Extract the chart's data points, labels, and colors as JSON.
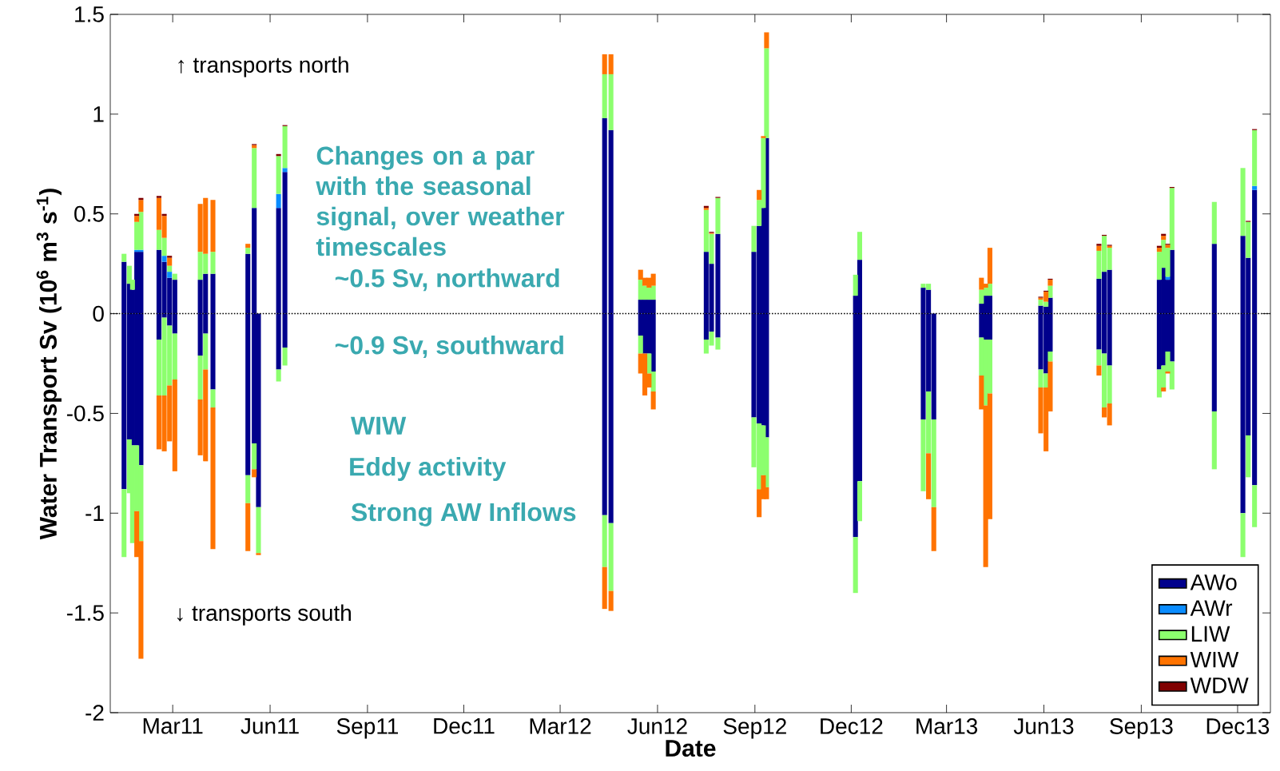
{
  "chart_data": {
    "type": "bar",
    "stacked": true,
    "xlabel": "Date",
    "ylabel": "Water Transport Sv (10$^{6}$ m$^{3}$ s$^{-1}$)",
    "x": [
      "2011-01-14",
      "2011-01-19",
      "2011-01-22",
      "2011-01-26",
      "2011-01-30",
      "2011-02-16",
      "2011-02-21",
      "2011-02-26",
      "2011-03-03",
      "2011-03-27",
      "2011-04-01",
      "2011-04-08",
      "2011-05-11",
      "2011-05-17",
      "2011-05-21",
      "2011-06-09",
      "2011-06-15",
      "2012-04-12",
      "2012-04-18",
      "2012-05-16",
      "2012-05-20",
      "2012-05-24",
      "2012-05-28",
      "2012-07-17",
      "2012-07-22",
      "2012-07-28",
      "2012-08-31",
      "2012-09-05",
      "2012-09-09",
      "2012-09-12",
      "2012-12-05",
      "2012-12-09",
      "2013-02-07",
      "2013-02-12",
      "2013-02-17",
      "2013-04-03",
      "2013-04-07",
      "2013-04-11",
      "2013-05-29",
      "2013-06-03",
      "2013-06-07",
      "2013-07-23",
      "2013-07-28",
      "2013-08-02",
      "2013-09-18",
      "2013-09-22",
      "2013-09-26",
      "2013-09-30",
      "2013-11-09",
      "2013-12-06",
      "2013-12-11",
      "2013-12-17"
    ],
    "series": [
      {
        "name": "AWo",
        "color": "#00008c",
        "values": [
          0.26,
          0.15,
          0.12,
          0.31,
          0.31,
          0.32,
          0.26,
          0.18,
          0.17,
          0.17,
          0.2,
          0.2,
          0.3,
          0.53,
          0,
          0.53,
          0.71,
          0.98,
          0.92,
          0.07,
          0.07,
          0.07,
          0.07,
          0.31,
          0.25,
          0.4,
          0.31,
          0.44,
          0.53,
          0.88,
          0.09,
          0.27,
          0.13,
          0.12,
          0,
          0.05,
          0.09,
          0.09,
          0.04,
          0.035,
          0.08,
          0.175,
          0.21,
          0.22,
          0.17,
          0.23,
          0.17,
          0.32,
          0.35,
          0.39,
          0.28,
          0.62
        ]
      },
      {
        "name": "AWr",
        "color": "#0a8cff",
        "values": [
          0,
          0,
          0,
          0.01,
          0.01,
          0,
          0.03,
          0.03,
          0,
          0,
          0,
          0,
          0,
          0,
          0,
          0.07,
          0.02,
          0,
          0,
          0,
          0,
          0,
          0,
          0,
          0,
          0,
          0,
          0,
          0,
          0,
          0,
          0,
          0,
          0,
          0,
          0,
          0,
          0,
          0,
          0,
          0,
          0,
          0,
          0,
          0,
          0,
          0.015,
          0,
          0,
          0,
          0,
          0.02
        ]
      },
      {
        "name": "LIW",
        "color": "#8cff6e",
        "values": [
          0.04,
          0.09,
          0.05,
          0.14,
          0.19,
          0.1,
          0.09,
          0.03,
          0.03,
          0.14,
          0.1,
          0.11,
          0.03,
          0.3,
          0,
          0.19,
          0.21,
          0.22,
          0.28,
          0.1,
          0.07,
          0.06,
          0.07,
          0.21,
          0.15,
          0.18,
          0.13,
          0.13,
          0.35,
          0.45,
          0.105,
          0.14,
          0.02,
          0.03,
          0,
          0.07,
          0.04,
          0.06,
          0.03,
          0.025,
          0.06,
          0.14,
          0.18,
          0.11,
          0.14,
          0.14,
          0.145,
          0.31,
          0.21,
          0.34,
          0.18,
          0.28
        ]
      },
      {
        "name": "WIW",
        "color": "#ff7300",
        "values": [
          0,
          0,
          0,
          0.03,
          0.06,
          0.16,
          0.11,
          0.04,
          0,
          0.24,
          0.28,
          0.26,
          0.02,
          0.015,
          0,
          0,
          0,
          0.1,
          0.1,
          0.05,
          0.04,
          0.05,
          0.06,
          0.01,
          0.005,
          0,
          0,
          0.05,
          0.01,
          0.08,
          0,
          0,
          0,
          0,
          0,
          0.06,
          0.02,
          0.18,
          0.01,
          0.05,
          0.03,
          0.025,
          0,
          0.01,
          0.02,
          0.02,
          0.015,
          0,
          0,
          0,
          0,
          0
        ]
      },
      {
        "name": "WDW",
        "color": "#800000",
        "values": [
          0,
          0,
          0,
          0.01,
          0.01,
          0.01,
          0.01,
          0.01,
          0,
          0,
          0,
          0,
          0,
          0.005,
          0,
          0.01,
          0.005,
          0,
          0,
          0,
          0,
          0,
          0,
          0.01,
          0.005,
          0.005,
          0,
          0,
          0,
          0,
          0,
          0,
          0,
          0,
          0,
          0,
          0,
          0,
          0.005,
          0.005,
          0.005,
          0.01,
          0.005,
          0.005,
          0.01,
          0.01,
          0.005,
          0.005,
          0,
          0,
          0.005,
          0.005
        ]
      },
      {
        "color": "#00008c",
        "values": [
          -0.88,
          -0.63,
          -0.66,
          -0.66,
          -0.76,
          -0.13,
          -0.02,
          -0.06,
          -0.1,
          -0.21,
          -0.1,
          -0.38,
          -0.81,
          -0.65,
          -0.97,
          -0.28,
          -0.17,
          -1.01,
          -1.05,
          -0.11,
          -0.2,
          -0.2,
          -0.29,
          -0.13,
          -0.09,
          -0.12,
          -0.52,
          -0.55,
          -0.56,
          -0.62,
          -1.12,
          -0.84,
          -0.53,
          -0.39,
          -0.53,
          -0.12,
          -0.13,
          -0.13,
          -0.28,
          -0.3,
          -0.19,
          -0.18,
          -0.2,
          -0.26,
          -0.28,
          -0.26,
          -0.19,
          -0.24,
          -0.49,
          -1.0,
          -0.61,
          -0.86
        ]
      },
      {
        "color": "#8cff6e",
        "values": [
          -0.34,
          -0.27,
          -0.49,
          -0.33,
          -0.38,
          -0.28,
          -0.39,
          -0.3,
          -0.23,
          -0.22,
          -0.18,
          -0.09,
          -0.14,
          -0.13,
          -0.23,
          -0.06,
          -0.09,
          -0.26,
          -0.34,
          -0.09,
          0,
          -0.1,
          -0.1,
          -0.07,
          -0.07,
          -0.06,
          -0.25,
          -0.33,
          -0.25,
          -0.25,
          -0.28,
          -0.2,
          -0.36,
          -0.31,
          -0.44,
          -0.19,
          -0.33,
          -0.27,
          -0.09,
          -0.07,
          -0.05,
          -0.08,
          -0.27,
          -0.19,
          -0.14,
          -0.11,
          -0.1,
          -0.14,
          -0.29,
          -0.22,
          -0.21,
          -0.21
        ]
      },
      {
        "color": "#ff7300",
        "values": [
          0,
          0,
          0,
          -0.23,
          -0.59,
          -0.27,
          -0.28,
          -0.28,
          -0.46,
          -0.28,
          -0.46,
          -0.71,
          -0.24,
          -0.04,
          -0.01,
          0,
          0,
          -0.21,
          -0.1,
          -0.1,
          -0.21,
          -0.07,
          -0.09,
          0,
          0,
          0,
          0,
          -0.14,
          -0.12,
          -0.06,
          0,
          0,
          0,
          -0.23,
          -0.22,
          -0.17,
          -0.81,
          -0.63,
          -0.23,
          -0.32,
          -0.25,
          -0.05,
          -0.05,
          -0.11,
          0,
          -0.02,
          -0.01,
          0,
          0,
          0,
          0,
          0
        ]
      }
    ],
    "xlim": [
      "2011-01-01",
      "2014-01-01"
    ],
    "xticks": [
      {
        "value": "2011-03-01",
        "label": "Mar11"
      },
      {
        "value": "2011-06-01",
        "label": "Jun11"
      },
      {
        "value": "2011-09-01",
        "label": "Sep11"
      },
      {
        "value": "2011-12-01",
        "label": "Dec11"
      },
      {
        "value": "2012-03-01",
        "label": "Mar12"
      },
      {
        "value": "2012-06-01",
        "label": "Jun12"
      },
      {
        "value": "2012-09-01",
        "label": "Sep12"
      },
      {
        "value": "2012-12-01",
        "label": "Dec12"
      },
      {
        "value": "2013-03-01",
        "label": "Mar13"
      },
      {
        "value": "2013-06-01",
        "label": "Jun13"
      },
      {
        "value": "2013-09-01",
        "label": "Sep13"
      },
      {
        "value": "2013-12-01",
        "label": "Dec13"
      }
    ],
    "ylim": [
      -2,
      1.5
    ],
    "yticks": [
      -2,
      -1.5,
      -1,
      -0.5,
      0,
      0.5,
      1,
      1.5
    ],
    "ref_lines": [
      {
        "axis": "y",
        "value": 0,
        "line_style": "dotted",
        "color": "#000000"
      }
    ],
    "legend": "bottom right",
    "annotations": [
      "↑ transports north",
      "↓ transports south",
      "Changes on a par with the seasonal signal, over weather timescales",
      "~0.5 Sv, northward",
      "~0.9 Sv, southward",
      "WIW",
      "Eddy activity",
      "Strong AW Inflows"
    ]
  }
}
